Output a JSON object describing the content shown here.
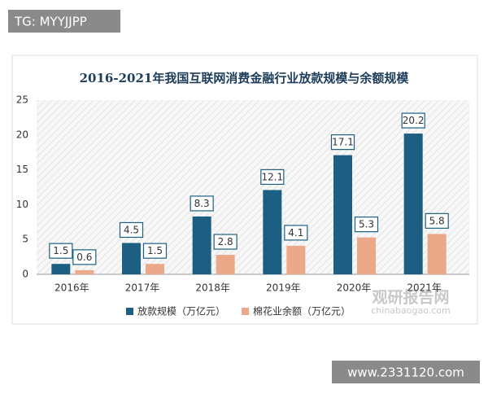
{
  "tag": "TG: MYYJJPP",
  "footer_url": "www.2331120.com",
  "watermark": {
    "name": "观研报告网",
    "url": "chinabaogao.com"
  },
  "chart_data": {
    "type": "bar",
    "title": "2016-2021年我国互联网消费金融行业放款规模与余额规模",
    "categories": [
      "2016年",
      "2017年",
      "2018年",
      "2019年",
      "2020年",
      "2021年"
    ],
    "series": [
      {
        "name": "放款规模（万亿元）",
        "color": "#1d5f82",
        "values": [
          1.5,
          4.5,
          8.3,
          12.1,
          17.1,
          20.2
        ]
      },
      {
        "name": "棉花业余额（万亿元）",
        "color": "#eba98a",
        "values": [
          0.6,
          1.5,
          2.8,
          4.1,
          5.3,
          5.8
        ]
      }
    ],
    "ylim": [
      0,
      25
    ],
    "yticks": [
      0,
      5,
      10,
      15,
      20,
      25
    ],
    "grid": false,
    "legend": "bottom"
  }
}
